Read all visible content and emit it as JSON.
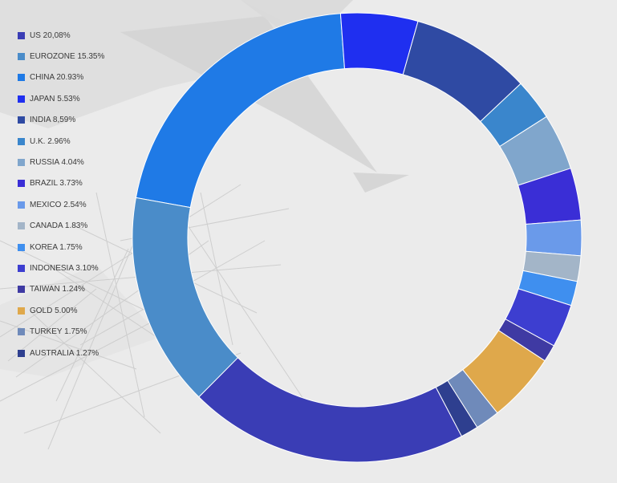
{
  "chart_data": {
    "type": "pie",
    "variant": "donut",
    "title": "",
    "legend_position": "left",
    "series": [
      {
        "label": "US 20,08%",
        "name": "US",
        "value": 20.08,
        "color": "#3a3db5"
      },
      {
        "label": "EUROZONE 15.35%",
        "name": "EUROZONE",
        "value": 15.35,
        "color": "#4a8cc9"
      },
      {
        "label": "CHINA 20.93%",
        "name": "CHINA",
        "value": 20.93,
        "color": "#1f7ae6"
      },
      {
        "label": "JAPAN 5.53%",
        "name": "JAPAN",
        "value": 5.53,
        "color": "#1f2ff0"
      },
      {
        "label": "INDIA 8,59%",
        "name": "INDIA",
        "value": 8.59,
        "color": "#2f4aa3"
      },
      {
        "label": "U.K. 2.96%",
        "name": "U.K.",
        "value": 2.96,
        "color": "#3a86cc"
      },
      {
        "label": "RUSSIA 4.04%",
        "name": "RUSSIA",
        "value": 4.04,
        "color": "#80a6cc"
      },
      {
        "label": "BRAZIL 3.73%",
        "name": "BRAZIL",
        "value": 3.73,
        "color": "#3a2ed6"
      },
      {
        "label": "MEXICO 2.54%",
        "name": "MEXICO",
        "value": 2.54,
        "color": "#6a9aea"
      },
      {
        "label": "CANADA 1.83%",
        "name": "CANADA",
        "value": 1.83,
        "color": "#a3b5c8"
      },
      {
        "label": "KOREA 1.75%",
        "name": "KOREA",
        "value": 1.75,
        "color": "#3f8fef"
      },
      {
        "label": "INDONESIA 3.10%",
        "name": "INDONESIA",
        "value": 3.1,
        "color": "#3d3ed0"
      },
      {
        "label": "TAIWAN 1.24%",
        "name": "TAIWAN",
        "value": 1.24,
        "color": "#3f3aa3"
      },
      {
        "label": "GOLD 5.00%",
        "name": "GOLD",
        "value": 5.0,
        "color": "#dfa84b"
      },
      {
        "label": "TURKEY 1.75%",
        "name": "TURKEY",
        "value": 1.75,
        "color": "#6f8aba"
      },
      {
        "label": "AUSTRALIA 1.27%",
        "name": "AUSTRALIA",
        "value": 1.27,
        "color": "#2e3f8f"
      }
    ]
  }
}
